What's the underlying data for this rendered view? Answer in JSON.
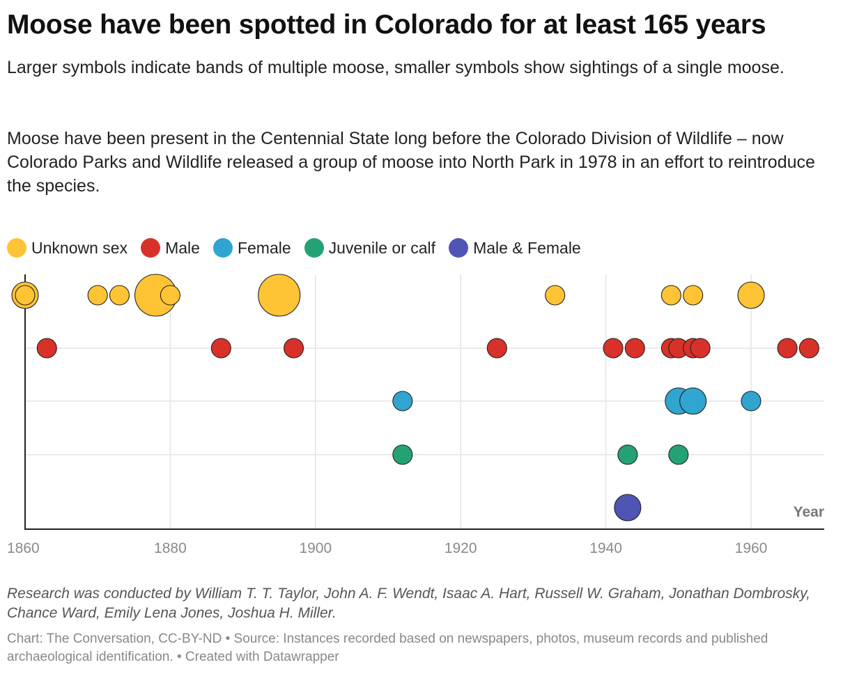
{
  "title": "Moose have been spotted in Colorado for at least 165 years",
  "description_1": "Larger symbols indicate bands of multiple moose, smaller symbols show sightings of a single moose.",
  "description_2": "Moose have been present in the Centennial State long before the Colorado Division of Wildlife – now Colorado Parks and Wildlife released a group of moose into North Park in 1978 in an effort to reintroduce the species.",
  "legend": [
    {
      "label": "Unknown sex",
      "color": "#FFC435"
    },
    {
      "label": "Male",
      "color": "#D8312A"
    },
    {
      "label": "Female",
      "color": "#2FA5CF"
    },
    {
      "label": "Juvenile or calf",
      "color": "#25A274"
    },
    {
      "label": "Male & Female",
      "color": "#4F55B5"
    }
  ],
  "chart_data": {
    "type": "scatter",
    "xlabel": "Year",
    "ylabel": "",
    "xlim": [
      1860,
      1970
    ],
    "x_ticks": [
      1860,
      1880,
      1900,
      1920,
      1940,
      1960
    ],
    "grid": true,
    "size_meaning": "Larger symbols indicate bands of multiple moose, smaller symbols show sightings of a single moose.",
    "series": [
      {
        "name": "Unknown sex",
        "color": "#FFC435",
        "points": [
          {
            "year": 1860,
            "size": "medium"
          },
          {
            "year": 1860,
            "size": "small"
          },
          {
            "year": 1870,
            "size": "small"
          },
          {
            "year": 1873,
            "size": "small"
          },
          {
            "year": 1878,
            "size": "large"
          },
          {
            "year": 1880,
            "size": "small"
          },
          {
            "year": 1895,
            "size": "large"
          },
          {
            "year": 1933,
            "size": "small"
          },
          {
            "year": 1949,
            "size": "small"
          },
          {
            "year": 1952,
            "size": "small"
          },
          {
            "year": 1960,
            "size": "medium"
          }
        ]
      },
      {
        "name": "Male",
        "color": "#D8312A",
        "points": [
          {
            "year": 1863,
            "size": "small"
          },
          {
            "year": 1887,
            "size": "small"
          },
          {
            "year": 1897,
            "size": "small"
          },
          {
            "year": 1925,
            "size": "small"
          },
          {
            "year": 1941,
            "size": "small"
          },
          {
            "year": 1944,
            "size": "small"
          },
          {
            "year": 1949,
            "size": "small"
          },
          {
            "year": 1950,
            "size": "small"
          },
          {
            "year": 1952,
            "size": "small"
          },
          {
            "year": 1953,
            "size": "small"
          },
          {
            "year": 1965,
            "size": "small"
          },
          {
            "year": 1968,
            "size": "small"
          }
        ]
      },
      {
        "name": "Female",
        "color": "#2FA5CF",
        "points": [
          {
            "year": 1912,
            "size": "small"
          },
          {
            "year": 1950,
            "size": "medium"
          },
          {
            "year": 1952,
            "size": "medium"
          },
          {
            "year": 1960,
            "size": "small"
          }
        ]
      },
      {
        "name": "Juvenile or calf",
        "color": "#25A274",
        "points": [
          {
            "year": 1912,
            "size": "small"
          },
          {
            "year": 1943,
            "size": "small"
          },
          {
            "year": 1950,
            "size": "small"
          }
        ]
      },
      {
        "name": "Male & Female",
        "color": "#4F55B5",
        "points": [
          {
            "year": 1943,
            "size": "medium"
          }
        ]
      }
    ]
  },
  "research_note": "Research was conducted by William T. T. Taylor, John A. F. Wendt, Isaac A. Hart, Russell W. Graham, Jonathan Dombrosky, Chance Ward, Emily Lena Jones, Joshua H. Miller.",
  "credit": "Chart: The Conversation, CC-BY-ND • Source: Instances recorded based on newspapers, photos, museum records and published archaeological identification. • Created with Datawrapper"
}
